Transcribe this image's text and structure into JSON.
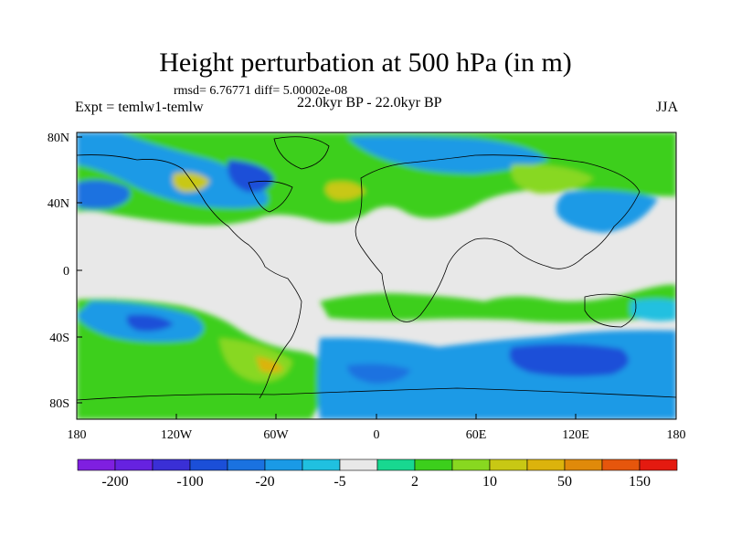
{
  "title": "Height perturbation at 500 hPa (in m)",
  "subtitle": "rmsd= 6.76771 diff= 5.00002e-08",
  "experiment": "Expt = temlw1-temlw",
  "period": "22.0kyr BP - 22.0kyr BP",
  "season": "JJA",
  "lat_ticks": [
    "80N",
    "40N",
    "0",
    "40S",
    "80S"
  ],
  "lon_ticks": [
    "180",
    "120W",
    "60W",
    "0",
    "60E",
    "120E",
    "180"
  ],
  "colorbar": {
    "colors": [
      "#7f1fe0",
      "#6622e0",
      "#3a2fd6",
      "#1b4fd8",
      "#1a72e0",
      "#1a9ae6",
      "#20c0e0",
      "#e8e8e8",
      "#18d890",
      "#3ccf1c",
      "#88d820",
      "#c8c814",
      "#dcb30c",
      "#e08a0a",
      "#e6560c",
      "#e41a10"
    ],
    "labels": [
      "-200",
      "-100",
      "-20",
      "-5",
      "2",
      "10",
      "50",
      "150"
    ]
  },
  "palette": {
    "background": "#e8e8e8",
    "coast": "#000000"
  }
}
